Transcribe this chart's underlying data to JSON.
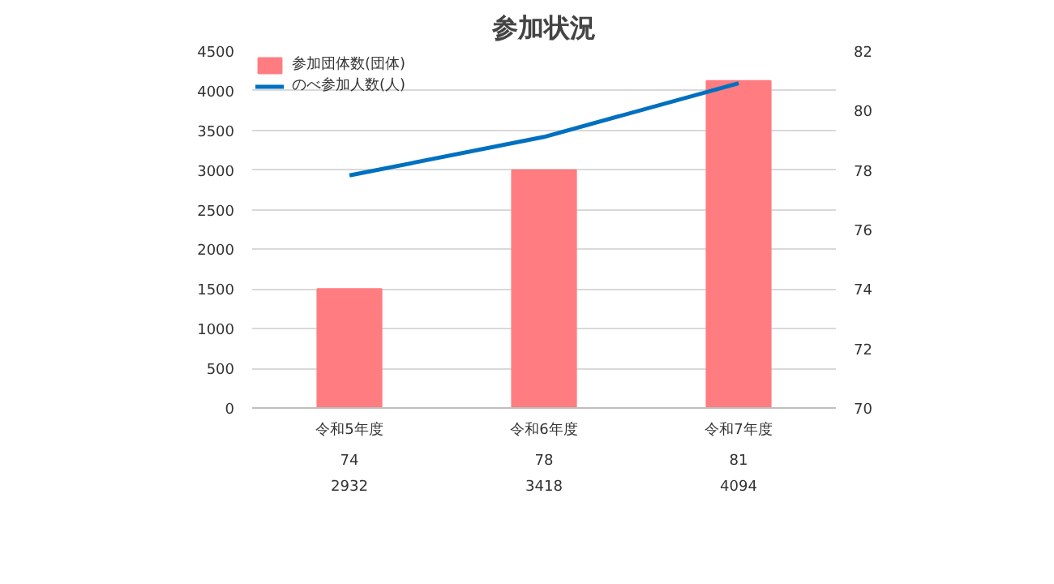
{
  "chart_data": {
    "type": "bar",
    "title": "参加状況",
    "categories": [
      "令和5年度",
      "令和6年度",
      "令和7年度"
    ],
    "series": [
      {
        "name": "参加団体数(団体)",
        "axis": "y2",
        "color": "#ff7c80",
        "values": [
          74,
          78,
          81
        ]
      },
      {
        "name": "のべ参加人数(人)",
        "type": "line",
        "axis": "y",
        "color": "#0070c0",
        "values": [
          2932,
          3418,
          4094
        ]
      }
    ],
    "ylim": [
      0,
      4500
    ],
    "yticks": [
      0,
      500,
      1000,
      1500,
      2000,
      2500,
      3000,
      3500,
      4000,
      4500
    ],
    "y2lim": [
      70,
      82
    ],
    "y2ticks": [
      70,
      72,
      74,
      76,
      78,
      80,
      82
    ],
    "grid": "y",
    "legend": "top left",
    "data_labels": true
  }
}
